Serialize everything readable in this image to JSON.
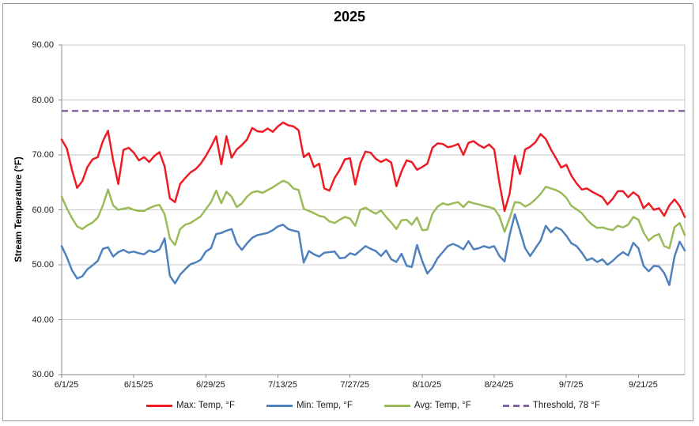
{
  "chart_data": {
    "type": "line",
    "title": "2025",
    "xlabel": "",
    "ylabel": "Stream Temperature (°F)",
    "ylim": [
      30,
      90
    ],
    "y_tick_step": 10,
    "y_tick_labels": [
      "90.00",
      "80.00",
      "70.00",
      "60.00",
      "50.00",
      "40.00",
      "30.00"
    ],
    "x_tick_labels": [
      "6/1/25",
      "6/15/25",
      "6/29/25",
      "7/13/25",
      "7/27/25",
      "8/10/25",
      "8/24/25",
      "9/7/25",
      "9/21/25"
    ],
    "x_tick_interval_days": 14,
    "grid": true,
    "legend_position": "bottom",
    "threshold": 78,
    "dates": [
      "6/1/25",
      "6/2/25",
      "6/3/25",
      "6/4/25",
      "6/5/25",
      "6/6/25",
      "6/7/25",
      "6/8/25",
      "6/9/25",
      "6/10/25",
      "6/11/25",
      "6/12/25",
      "6/13/25",
      "6/14/25",
      "6/15/25",
      "6/16/25",
      "6/17/25",
      "6/18/25",
      "6/19/25",
      "6/20/25",
      "6/21/25",
      "6/22/25",
      "6/23/25",
      "6/24/25",
      "6/25/25",
      "6/26/25",
      "6/27/25",
      "6/28/25",
      "6/29/25",
      "6/30/25",
      "7/1/25",
      "7/2/25",
      "7/3/25",
      "7/4/25",
      "7/5/25",
      "7/6/25",
      "7/7/25",
      "7/8/25",
      "7/9/25",
      "7/10/25",
      "7/11/25",
      "7/12/25",
      "7/13/25",
      "7/14/25",
      "7/15/25",
      "7/16/25",
      "7/17/25",
      "7/18/25",
      "7/19/25",
      "7/20/25",
      "7/21/25",
      "7/22/25",
      "7/23/25",
      "7/24/25",
      "7/25/25",
      "7/26/25",
      "7/27/25",
      "7/28/25",
      "7/29/25",
      "7/30/25",
      "7/31/25",
      "8/1/25",
      "8/2/25",
      "8/3/25",
      "8/4/25",
      "8/5/25",
      "8/6/25",
      "8/7/25",
      "8/8/25",
      "8/9/25",
      "8/10/25",
      "8/11/25",
      "8/12/25",
      "8/13/25",
      "8/14/25",
      "8/15/25",
      "8/16/25",
      "8/17/25",
      "8/18/25",
      "8/19/25",
      "8/20/25",
      "8/21/25",
      "8/22/25",
      "8/23/25",
      "8/24/25",
      "8/25/25",
      "8/26/25",
      "8/27/25",
      "8/28/25",
      "8/29/25",
      "8/30/25",
      "8/31/25",
      "9/1/25",
      "9/2/25",
      "9/3/25",
      "9/4/25",
      "9/5/25",
      "9/6/25",
      "9/7/25",
      "9/8/25",
      "9/9/25",
      "9/10/25",
      "9/11/25",
      "9/12/25",
      "9/13/25",
      "9/14/25",
      "9/15/25",
      "9/16/25",
      "9/17/25",
      "9/18/25",
      "9/19/25",
      "9/20/25",
      "9/21/25",
      "9/22/25",
      "9/23/25",
      "9/24/25",
      "9/25/25",
      "9/26/25",
      "9/27/25",
      "9/28/25",
      "9/29/25",
      "9/30/25"
    ],
    "series": [
      {
        "name": "Max: Temp, °F",
        "color": "#ed1c24",
        "style": "solid",
        "values": [
          72.8,
          71.2,
          67.3,
          64.0,
          65.2,
          67.8,
          69.2,
          69.6,
          72.5,
          74.4,
          69.0,
          64.7,
          70.9,
          71.3,
          70.4,
          69.0,
          69.6,
          68.7,
          69.8,
          70.5,
          67.9,
          62.1,
          61.4,
          64.7,
          65.8,
          66.8,
          67.4,
          68.4,
          69.8,
          71.5,
          73.4,
          68.3,
          73.4,
          69.5,
          71.0,
          71.8,
          72.8,
          74.9,
          74.3,
          74.2,
          74.8,
          74.2,
          75.2,
          75.9,
          75.4,
          75.2,
          74.5,
          69.6,
          70.3,
          67.8,
          68.4,
          63.9,
          63.5,
          65.8,
          67.3,
          69.2,
          69.4,
          64.6,
          68.5,
          70.6,
          70.4,
          69.3,
          68.7,
          69.2,
          68.6,
          64.3,
          67.0,
          69.0,
          68.7,
          67.3,
          67.8,
          68.4,
          71.3,
          72.1,
          72.0,
          71.4,
          71.6,
          72.0,
          70.0,
          72.2,
          72.5,
          71.8,
          71.3,
          71.9,
          71.0,
          64.9,
          59.8,
          63.0,
          69.8,
          66.5,
          71.0,
          71.5,
          72.3,
          73.8,
          72.9,
          71.0,
          69.4,
          67.7,
          68.2,
          66.2,
          64.8,
          63.7,
          63.9,
          63.3,
          62.8,
          62.3,
          61.0,
          62.0,
          63.4,
          63.4,
          62.3,
          63.2,
          62.5,
          60.3,
          61.2,
          60.0,
          60.3,
          58.9,
          60.8,
          61.9,
          60.7,
          58.7
        ]
      },
      {
        "name": "Min: Temp, °F",
        "color": "#4f81bd",
        "style": "solid",
        "values": [
          53.4,
          51.4,
          49.0,
          47.5,
          47.9,
          49.2,
          49.9,
          50.7,
          52.9,
          53.2,
          51.5,
          52.3,
          52.7,
          52.2,
          52.4,
          52.1,
          51.9,
          52.6,
          52.3,
          52.8,
          54.8,
          48.0,
          46.6,
          48.2,
          49.2,
          50.1,
          50.4,
          50.9,
          52.4,
          53.0,
          55.6,
          55.8,
          56.2,
          56.5,
          53.9,
          52.7,
          53.9,
          54.9,
          55.4,
          55.6,
          55.8,
          56.3,
          57.0,
          57.3,
          56.5,
          56.2,
          56.0,
          50.4,
          52.5,
          51.9,
          51.5,
          52.2,
          52.3,
          52.4,
          51.2,
          51.3,
          52.1,
          51.8,
          52.6,
          53.4,
          52.9,
          52.5,
          51.6,
          52.6,
          51.0,
          50.5,
          52.0,
          49.8,
          49.6,
          53.6,
          50.7,
          48.4,
          49.5,
          51.2,
          52.3,
          53.4,
          53.8,
          53.4,
          52.8,
          54.3,
          52.8,
          53.0,
          53.4,
          53.1,
          53.4,
          51.6,
          50.6,
          55.5,
          59.2,
          56.2,
          53.0,
          51.6,
          53.0,
          54.4,
          57.1,
          55.9,
          56.8,
          56.4,
          55.3,
          53.9,
          53.4,
          52.2,
          50.8,
          51.2,
          50.5,
          51.0,
          50.0,
          50.7,
          51.6,
          52.3,
          51.7,
          54.0,
          53.0,
          49.8,
          48.8,
          49.8,
          49.7,
          48.5,
          46.3,
          51.5,
          54.2,
          52.6
        ]
      },
      {
        "name": "Avg: Temp, °F",
        "color": "#9bbb59",
        "style": "solid",
        "values": [
          62.4,
          60.3,
          58.5,
          57.0,
          56.5,
          57.2,
          57.7,
          58.6,
          60.8,
          63.7,
          60.8,
          60.0,
          60.2,
          60.4,
          60.0,
          59.8,
          59.8,
          60.3,
          60.7,
          60.9,
          59.2,
          54.8,
          53.6,
          56.5,
          57.3,
          57.6,
          58.2,
          58.8,
          60.1,
          61.4,
          63.5,
          61.2,
          63.3,
          62.4,
          60.5,
          61.2,
          62.4,
          63.2,
          63.4,
          63.1,
          63.6,
          64.1,
          64.7,
          65.3,
          64.9,
          63.9,
          63.6,
          60.2,
          59.8,
          59.4,
          58.9,
          58.7,
          57.9,
          57.6,
          58.2,
          58.7,
          58.4,
          57.1,
          60.0,
          60.4,
          59.8,
          59.3,
          59.9,
          58.7,
          57.7,
          56.5,
          58.1,
          58.2,
          57.3,
          58.6,
          56.3,
          56.4,
          59.3,
          60.6,
          61.2,
          60.9,
          61.2,
          61.4,
          60.5,
          61.5,
          61.2,
          61.0,
          60.7,
          60.5,
          60.2,
          58.8,
          56.0,
          58.5,
          61.4,
          61.3,
          60.6,
          61.1,
          61.9,
          62.9,
          64.2,
          63.9,
          63.6,
          63.1,
          62.2,
          60.7,
          60.1,
          59.4,
          58.2,
          57.3,
          56.7,
          56.8,
          56.5,
          56.3,
          57.1,
          56.8,
          57.3,
          58.7,
          58.2,
          55.9,
          54.4,
          55.2,
          55.6,
          53.4,
          53.0,
          56.8,
          57.6,
          55.4
        ]
      },
      {
        "name": "Threshold, 78 °F",
        "color": "#8064a2",
        "style": "dashed",
        "constant": 78
      }
    ],
    "colors": {
      "gridline": "#c9c9c9",
      "axis": "#8a8a8a",
      "tick_text": "#1a1a1a",
      "frame_border": "#9b9b9b"
    }
  }
}
